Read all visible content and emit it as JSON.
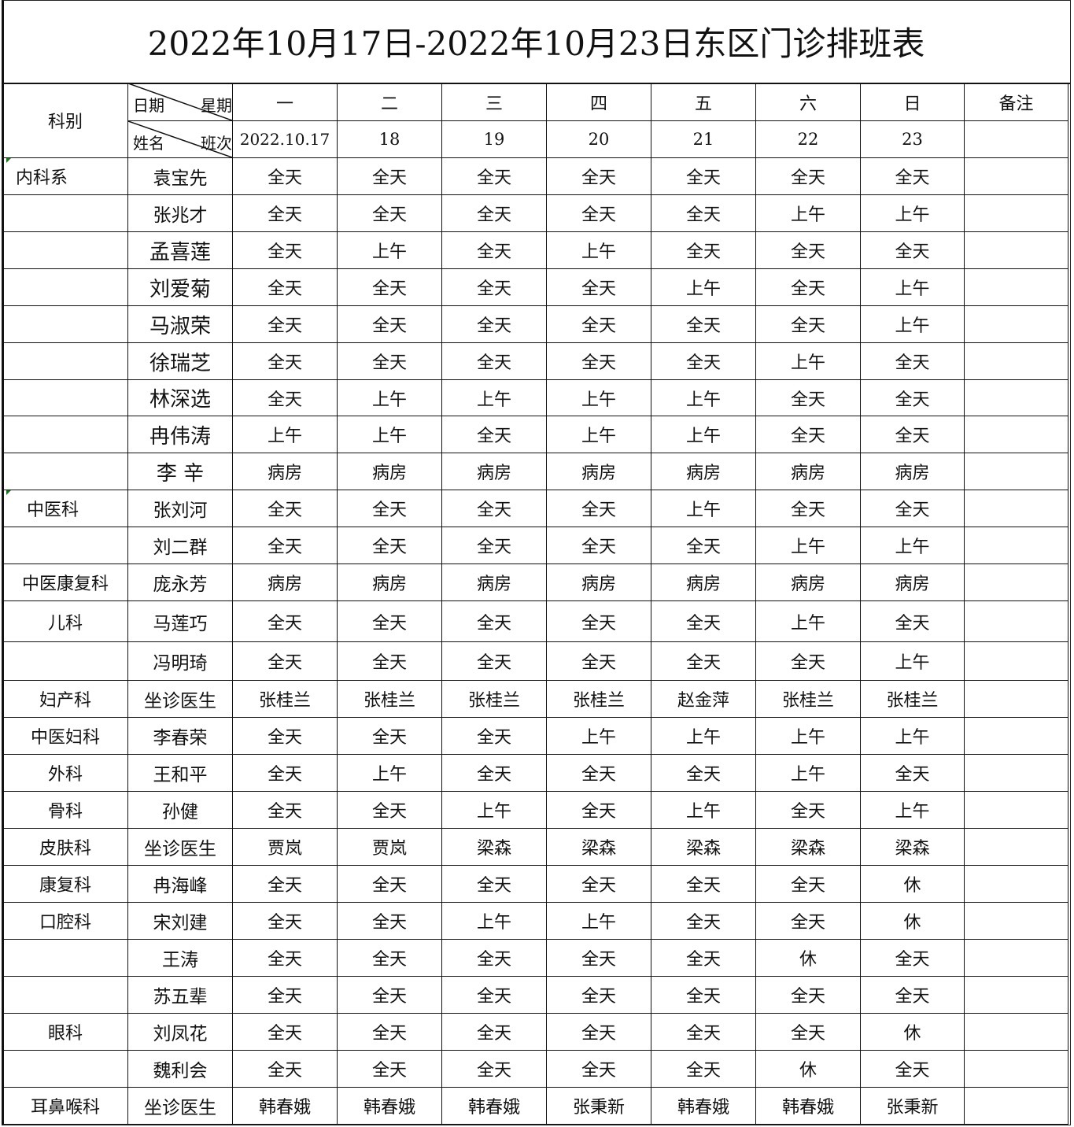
{
  "title": "2022年10月17日-2022年10月23日东区门诊排班表",
  "header": {
    "dept_label": "科别",
    "corner_top_left": "日期",
    "corner_top_right": "星期",
    "corner_bottom_left": "姓名",
    "corner_bottom_right": "班次",
    "weekdays": [
      "一",
      "二",
      "三",
      "四",
      "五",
      "六",
      "日"
    ],
    "dates": [
      "2022.10.17",
      "18",
      "19",
      "20",
      "21",
      "22",
      "23"
    ],
    "notes_label": "备注"
  },
  "rows": [
    {
      "dept": "内科系",
      "name": "袁宝先",
      "shifts": [
        "全天",
        "全天",
        "全天",
        "全天",
        "全天",
        "全天",
        "全天"
      ],
      "note": ""
    },
    {
      "dept": "",
      "name": "张兆才",
      "shifts": [
        "全天",
        "全天",
        "全天",
        "全天",
        "全天",
        "上午",
        "上午"
      ],
      "note": ""
    },
    {
      "dept": "",
      "name": "孟喜莲",
      "shifts": [
        "全天",
        "上午",
        "全天",
        "上午",
        "全天",
        "全天",
        "全天"
      ],
      "note": ""
    },
    {
      "dept": "",
      "name": "刘爱菊",
      "shifts": [
        "全天",
        "全天",
        "全天",
        "全天",
        "上午",
        "全天",
        "上午"
      ],
      "note": ""
    },
    {
      "dept": "",
      "name": "马淑荣",
      "shifts": [
        "全天",
        "全天",
        "全天",
        "全天",
        "全天",
        "全天",
        "上午"
      ],
      "note": ""
    },
    {
      "dept": "",
      "name": "徐瑞芝",
      "shifts": [
        "全天",
        "全天",
        "全天",
        "全天",
        "全天",
        "上午",
        "全天"
      ],
      "note": ""
    },
    {
      "dept": "",
      "name": "林深选",
      "shifts": [
        "全天",
        "上午",
        "上午",
        "上午",
        "上午",
        "全天",
        "全天"
      ],
      "note": ""
    },
    {
      "dept": "",
      "name": "冉伟涛",
      "shifts": [
        "上午",
        "上午",
        "全天",
        "上午",
        "上午",
        "全天",
        "全天"
      ],
      "note": ""
    },
    {
      "dept": "",
      "name": "李  辛",
      "shifts": [
        "病房",
        "病房",
        "病房",
        "病房",
        "病房",
        "病房",
        "病房"
      ],
      "note": ""
    },
    {
      "dept": "中医科",
      "name": "张刘河",
      "shifts": [
        "全天",
        "全天",
        "全天",
        "全天",
        "上午",
        "全天",
        "全天"
      ],
      "note": ""
    },
    {
      "dept": "",
      "name": "刘二群",
      "shifts": [
        "全天",
        "全天",
        "全天",
        "全天",
        "全天",
        "上午",
        "上午"
      ],
      "note": ""
    },
    {
      "dept": "中医康复科",
      "name": "庞永芳",
      "shifts": [
        "病房",
        "病房",
        "病房",
        "病房",
        "病房",
        "病房",
        "病房"
      ],
      "note": ""
    },
    {
      "dept": "儿科",
      "name": "马莲巧",
      "shifts": [
        "全天",
        "全天",
        "全天",
        "全天",
        "全天",
        "上午",
        "全天"
      ],
      "note": ""
    },
    {
      "dept": "",
      "name": "冯明琦",
      "shifts": [
        "全天",
        "全天",
        "全天",
        "全天",
        "全天",
        "全天",
        "上午"
      ],
      "note": ""
    },
    {
      "dept": "妇产科",
      "name": "坐诊医生",
      "shifts": [
        "张桂兰",
        "张桂兰",
        "张桂兰",
        "张桂兰",
        "赵金萍",
        "张桂兰",
        "张桂兰"
      ],
      "note": ""
    },
    {
      "dept": "中医妇科",
      "name": "李春荣",
      "shifts": [
        "全天",
        "全天",
        "全天",
        "上午",
        "上午",
        "上午",
        "上午"
      ],
      "note": ""
    },
    {
      "dept": "外科",
      "name": "王和平",
      "shifts": [
        "全天",
        "上午",
        "全天",
        "全天",
        "全天",
        "上午",
        "全天"
      ],
      "note": ""
    },
    {
      "dept": "骨科",
      "name": "孙健",
      "shifts": [
        "全天",
        "全天",
        "上午",
        "全天",
        "上午",
        "全天",
        "上午"
      ],
      "note": ""
    },
    {
      "dept": "皮肤科",
      "name": "坐诊医生",
      "shifts": [
        "贾岚",
        "贾岚",
        "梁森",
        "梁森",
        "梁森",
        "梁森",
        "梁森"
      ],
      "note": ""
    },
    {
      "dept": "康复科",
      "name": "冉海峰",
      "shifts": [
        "全天",
        "全天",
        "全天",
        "全天",
        "全天",
        "全天",
        "休"
      ],
      "note": ""
    },
    {
      "dept": "口腔科",
      "name": "宋刘建",
      "shifts": [
        "全天",
        "全天",
        "上午",
        "上午",
        "全天",
        "全天",
        "休"
      ],
      "note": ""
    },
    {
      "dept": "",
      "name": "王涛",
      "shifts": [
        "全天",
        "全天",
        "全天",
        "全天",
        "全天",
        "休",
        "全天"
      ],
      "note": ""
    },
    {
      "dept": "",
      "name": "苏五辈",
      "shifts": [
        "全天",
        "全天",
        "全天",
        "全天",
        "全天",
        "全天",
        "全天"
      ],
      "note": ""
    },
    {
      "dept": "眼科",
      "name": "刘凤花",
      "shifts": [
        "全天",
        "全天",
        "全天",
        "全天",
        "全天",
        "全天",
        "休"
      ],
      "note": ""
    },
    {
      "dept": "",
      "name": "魏利会",
      "shifts": [
        "全天",
        "全天",
        "全天",
        "全天",
        "全天",
        "休",
        "全天"
      ],
      "note": ""
    },
    {
      "dept": "耳鼻喉科",
      "name": "坐诊医生",
      "shifts": [
        "韩春娥",
        "韩春娥",
        "韩春娥",
        "张秉新",
        "韩春娥",
        "韩春娥",
        "张秉新"
      ],
      "note": ""
    }
  ]
}
